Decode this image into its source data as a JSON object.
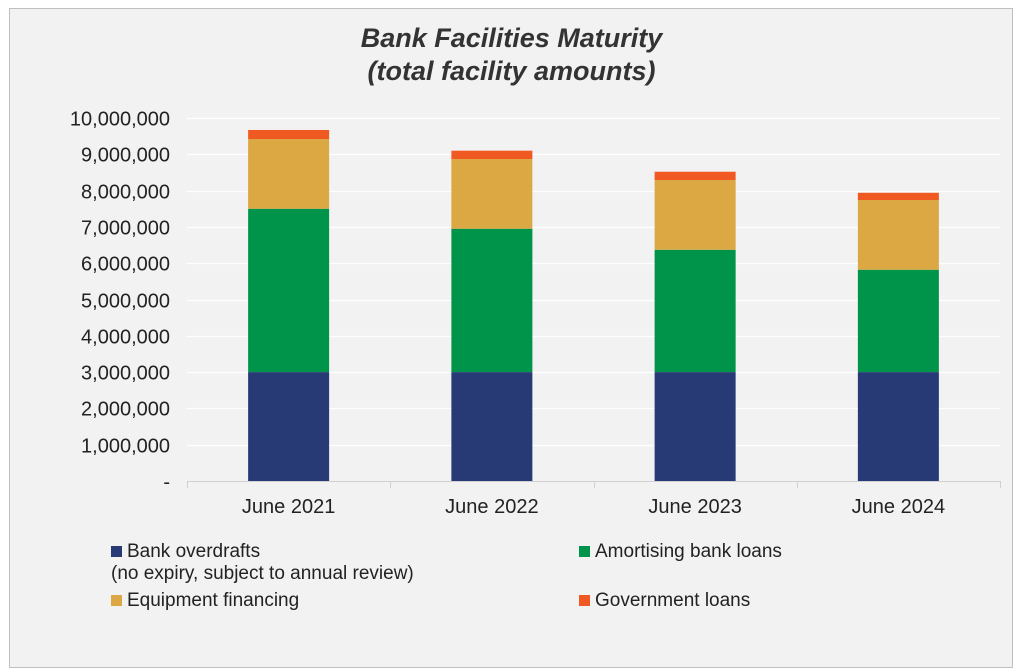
{
  "chart_data": {
    "type": "bar",
    "stacked": true,
    "title": "Bank Facilities Maturity",
    "subtitle": "(total facility amounts)",
    "categories": [
      "June 2021",
      "June 2022",
      "June 2023",
      "June 2024"
    ],
    "series": [
      {
        "name": "Bank overdrafts",
        "name_note": "(no expiry, subject to annual review)",
        "color": "#283a76",
        "values": [
          3000000,
          3000000,
          3000000,
          3000000
        ]
      },
      {
        "name": "Amortising bank loans",
        "color": "#00944a",
        "values": [
          4500000,
          3950000,
          3370000,
          2820000
        ]
      },
      {
        "name": "Equipment financing",
        "color": "#dba843",
        "values": [
          1920000,
          1920000,
          1920000,
          1920000
        ]
      },
      {
        "name": "Government loans",
        "color": "#f05a22",
        "values": [
          250000,
          230000,
          230000,
          200000
        ]
      }
    ],
    "ylim": [
      0,
      10000000
    ],
    "yticks": [
      0,
      1000000,
      2000000,
      3000000,
      4000000,
      5000000,
      6000000,
      7000000,
      8000000,
      9000000,
      10000000
    ],
    "ytick_labels": [
      "-",
      "1,000,000",
      "2,000,000",
      "3,000,000",
      "4,000,000",
      "5,000,000",
      "6,000,000",
      "7,000,000",
      "8,000,000",
      "9,000,000",
      "10,000,000"
    ],
    "grid": true,
    "legend_position": "bottom",
    "background": "#f2f2f2"
  }
}
